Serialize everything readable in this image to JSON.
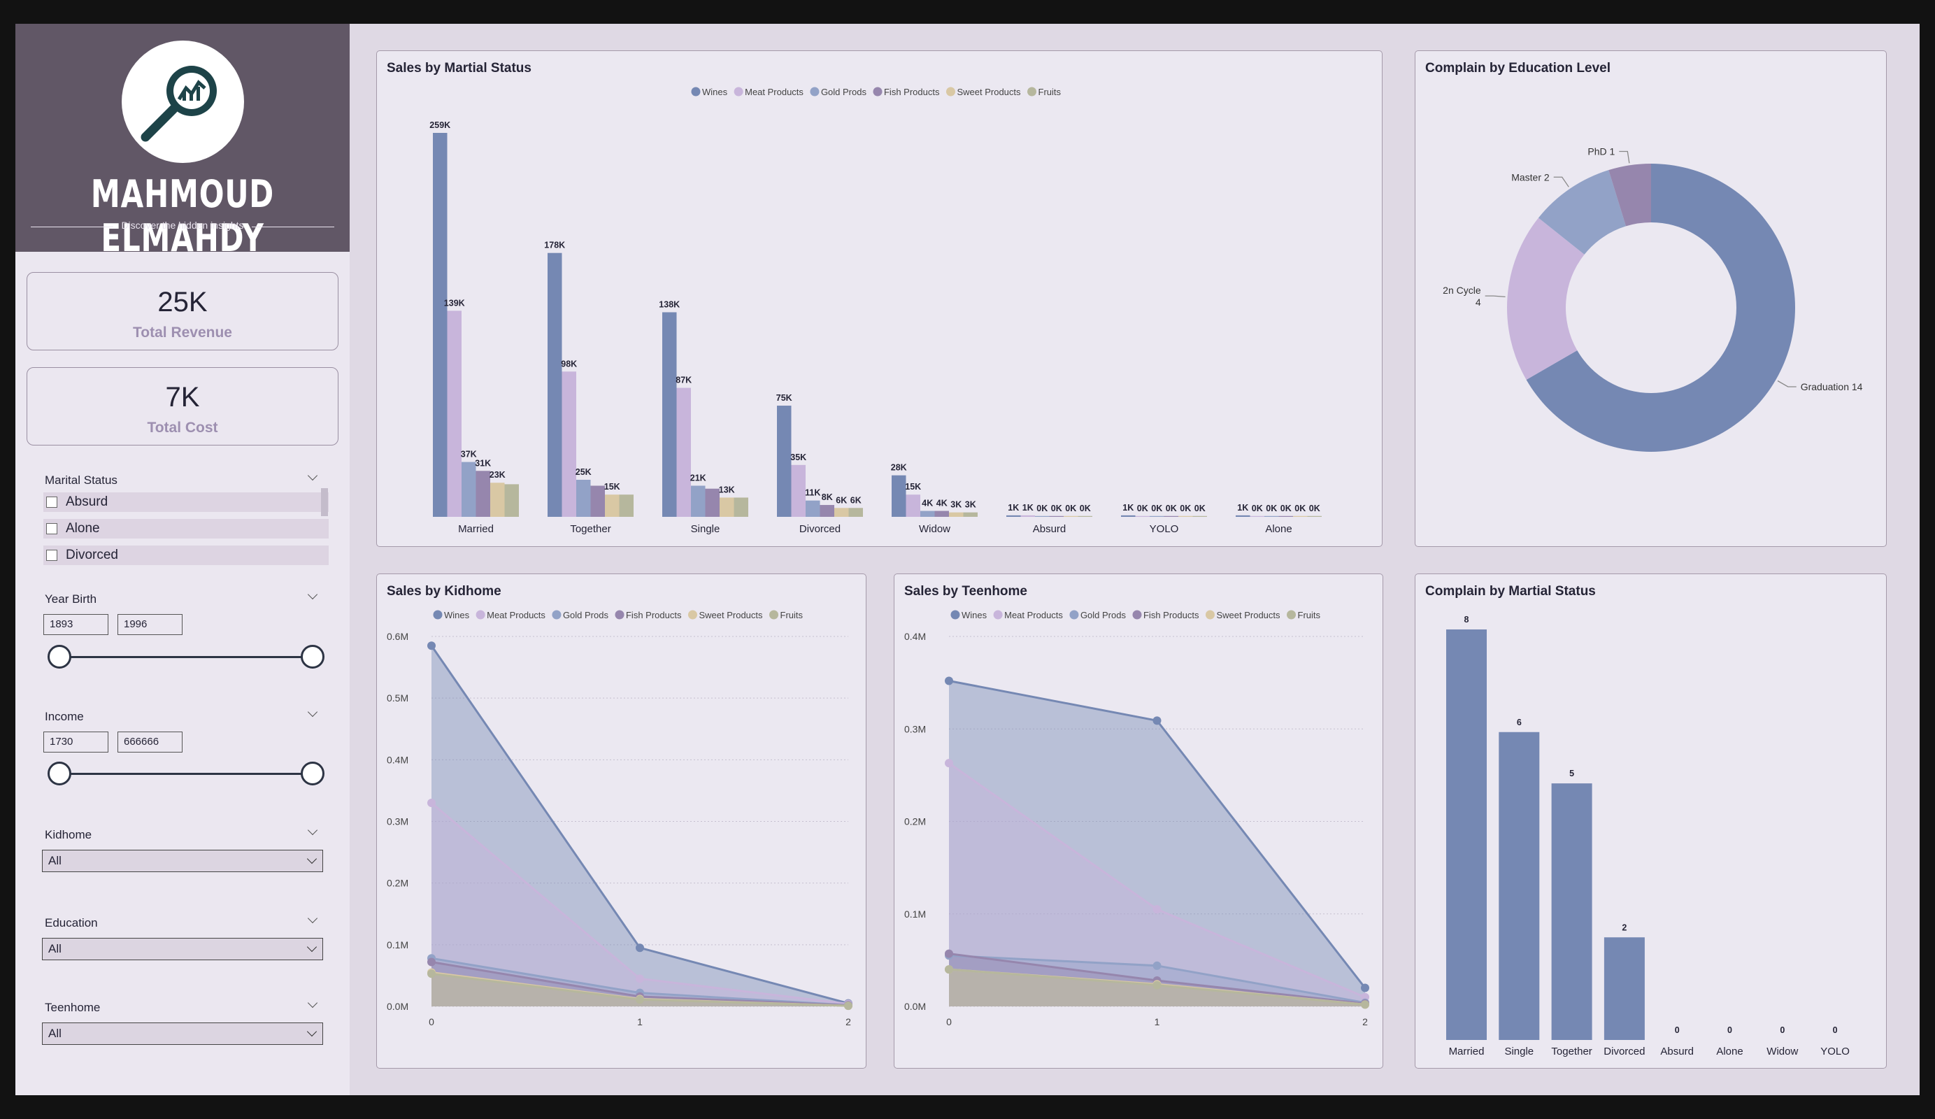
{
  "brand": {
    "name": "MAHMOUD ELMAHDY",
    "tagline": "Discover the hidden insights",
    "logo_icon": "magnifier-chart-icon"
  },
  "kpis": {
    "revenue": {
      "value": "25K",
      "label": "Total Revenue"
    },
    "cost": {
      "value": "7K",
      "label": "Total Cost"
    }
  },
  "filters": {
    "marital_status": {
      "title": "Marital Status",
      "options": [
        "Absurd",
        "Alone",
        "Divorced"
      ]
    },
    "year_birth": {
      "title": "Year Birth",
      "min": "1893",
      "max": "1996"
    },
    "income": {
      "title": "Income",
      "min": "1730",
      "max": "666666"
    },
    "kidhome": {
      "title": "Kidhome",
      "value": "All"
    },
    "education": {
      "title": "Education",
      "value": "All"
    },
    "teenhome": {
      "title": "Teenhome",
      "value": "All"
    }
  },
  "colors": {
    "Wines": "#7588b3",
    "Meat Products": "#c8b5db",
    "Gold Prods": "#92a2c7",
    "Fish Products": "#9686ad",
    "Sweet Products": "#d9c8a4",
    "Fruits": "#b6b79d",
    "edu": {
      "Graduation": "#7588b3",
      "2n Cycle": "#c8b5db",
      "Master": "#92a2c7",
      "PhD": "#9686ad"
    },
    "bar": "#7588b3"
  },
  "chart_data": [
    {
      "id": "sales_marital",
      "type": "bar",
      "title": "Sales by Martial Status",
      "categories": [
        "Married",
        "Together",
        "Single",
        "Divorced",
        "Widow",
        "Absurd",
        "YOLO",
        "Alone"
      ],
      "series": [
        {
          "name": "Wines",
          "values": [
            259,
            178,
            138,
            75,
            28,
            1,
            1,
            1
          ],
          "labels": [
            "259K",
            "178K",
            "138K",
            "75K",
            "28K",
            "1K",
            "1K",
            "1K"
          ]
        },
        {
          "name": "Meat Products",
          "values": [
            139,
            98,
            87,
            35,
            15,
            1,
            0,
            0
          ],
          "labels": [
            "139K",
            "98K",
            "87K",
            "35K",
            "15K",
            "1K",
            "0K",
            "0K"
          ]
        },
        {
          "name": "Gold Prods",
          "values": [
            37,
            25,
            21,
            11,
            4,
            0,
            0,
            0
          ],
          "labels": [
            "37K",
            "25K",
            "21K",
            "11K",
            "4K",
            "0K",
            "0K",
            "0K"
          ]
        },
        {
          "name": "Fish Products",
          "values": [
            31,
            21,
            19,
            8,
            4,
            0,
            0,
            0
          ],
          "labels": [
            "31K",
            "",
            "",
            "8K",
            "4K",
            "0K",
            "0K",
            "0K"
          ]
        },
        {
          "name": "Sweet Products",
          "values": [
            23,
            15,
            13,
            6,
            3,
            0,
            0,
            0
          ],
          "labels": [
            "23K",
            "15K",
            "13K",
            "6K",
            "3K",
            "0K",
            "0K",
            "0K"
          ]
        },
        {
          "name": "Fruits",
          "values": [
            22,
            15,
            13,
            6,
            3,
            0,
            0,
            0
          ],
          "labels": [
            "",
            "",
            "",
            "6K",
            "3K",
            "0K",
            "0K",
            "0K"
          ]
        }
      ]
    },
    {
      "id": "complain_edu",
      "type": "pie",
      "title": "Complain by Education Level",
      "slices": [
        {
          "name": "Graduation",
          "value": 14,
          "label": "Graduation 14"
        },
        {
          "name": "2n Cycle",
          "value": 4,
          "label": [
            "2n Cycle",
            "4"
          ]
        },
        {
          "name": "Master",
          "value": 2,
          "label": "Master 2"
        },
        {
          "name": "PhD",
          "value": 1,
          "label": "PhD 1"
        }
      ]
    },
    {
      "id": "sales_kidhome",
      "type": "area",
      "title": "Sales by Kidhome",
      "x": [
        0,
        1,
        2
      ],
      "ylim": [
        0,
        0.6
      ],
      "yticks": [
        "0.0M",
        "0.1M",
        "0.2M",
        "0.3M",
        "0.4M",
        "0.5M",
        "0.6M"
      ],
      "series": [
        {
          "name": "Wines",
          "values": [
            0.585,
            0.095,
            0.005
          ]
        },
        {
          "name": "Meat Products",
          "values": [
            0.33,
            0.045,
            0.004
          ]
        },
        {
          "name": "Gold Prods",
          "values": [
            0.078,
            0.022,
            0.002
          ]
        },
        {
          "name": "Fish Products",
          "values": [
            0.072,
            0.016,
            0.002
          ]
        },
        {
          "name": "Sweet Products",
          "values": [
            0.055,
            0.012,
            0.001
          ]
        },
        {
          "name": "Fruits",
          "values": [
            0.053,
            0.011,
            0.001
          ]
        }
      ]
    },
    {
      "id": "sales_teenhome",
      "type": "area",
      "title": "Sales by Teenhome",
      "x": [
        0,
        1,
        2
      ],
      "ylim": [
        0,
        0.4
      ],
      "yticks": [
        "0.0M",
        "0.1M",
        "0.2M",
        "0.3M",
        "0.4M"
      ],
      "series": [
        {
          "name": "Wines",
          "values": [
            0.352,
            0.309,
            0.02
          ]
        },
        {
          "name": "Meat Products",
          "values": [
            0.263,
            0.105,
            0.01
          ]
        },
        {
          "name": "Gold Prods",
          "values": [
            0.055,
            0.044,
            0.004
          ]
        },
        {
          "name": "Fish Products",
          "values": [
            0.057,
            0.028,
            0.003
          ]
        },
        {
          "name": "Sweet Products",
          "values": [
            0.04,
            0.024,
            0.002
          ]
        },
        {
          "name": "Fruits",
          "values": [
            0.04,
            0.023,
            0.002
          ]
        }
      ]
    },
    {
      "id": "complain_marital",
      "type": "bar",
      "title": "Complain by Martial Status",
      "categories": [
        "Married",
        "Single",
        "Together",
        "Divorced",
        "Absurd",
        "Alone",
        "Widow",
        "YOLO"
      ],
      "values": [
        8,
        6,
        5,
        2,
        0,
        0,
        0,
        0
      ]
    }
  ]
}
